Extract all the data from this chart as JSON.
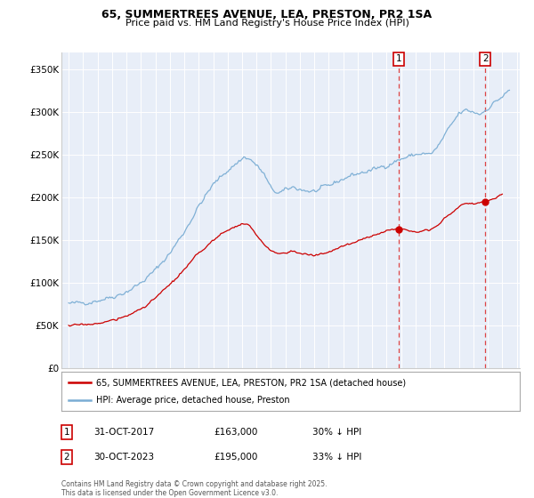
{
  "title": "65, SUMMERTREES AVENUE, LEA, PRESTON, PR2 1SA",
  "subtitle": "Price paid vs. HM Land Registry's House Price Index (HPI)",
  "ylabel_ticks": [
    "£0",
    "£50K",
    "£100K",
    "£150K",
    "£200K",
    "£250K",
    "£300K",
    "£350K"
  ],
  "ytick_values": [
    0,
    50000,
    100000,
    150000,
    200000,
    250000,
    300000,
    350000
  ],
  "ylim": [
    0,
    370000
  ],
  "xlim_start": 1994.5,
  "xlim_end": 2026.2,
  "hpi_color": "#7aadd4",
  "price_color": "#cc0000",
  "vline_color": "#dd4444",
  "marker1_x": 2017.83,
  "marker2_x": 2023.83,
  "marker1_y": 163000,
  "marker2_y": 195000,
  "legend_line1": "65, SUMMERTREES AVENUE, LEA, PRESTON, PR2 1SA (detached house)",
  "legend_line2": "HPI: Average price, detached house, Preston",
  "table_row1": [
    "1",
    "31-OCT-2017",
    "£163,000",
    "30% ↓ HPI"
  ],
  "table_row2": [
    "2",
    "30-OCT-2023",
    "£195,000",
    "33% ↓ HPI"
  ],
  "footer": "Contains HM Land Registry data © Crown copyright and database right 2025.\nThis data is licensed under the Open Government Licence v3.0.",
  "background_color": "#ffffff",
  "plot_bg_color": "#e8eef8"
}
